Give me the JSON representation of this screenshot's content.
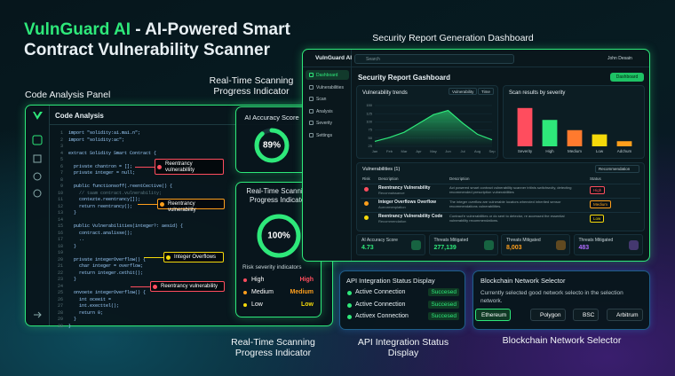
{
  "header": {
    "brand": "VulnGuard AI",
    "title": "- AI-Powered Smart Contract Vulnerability Scanner"
  },
  "captions": {
    "code_panel": "Code Analysis Panel",
    "progress_top": "Real-Time Scanning Progress Indicator",
    "dashboard": "Security Report Generation Dashboard",
    "progress_bottom": "Real-Time Scanning Progress Indicator",
    "api": "API Integration Status Display",
    "network": "Blockchain Network Selector"
  },
  "code_panel": {
    "title": "Code Analysis",
    "lines": [
      {
        "n": 1,
        "code": "import \"solidity:ai.mai.n\";"
      },
      {
        "n": 2,
        "code": "import \"solidity:ac\";"
      },
      {
        "n": 3
      },
      {
        "n": 4,
        "code": "extract Solidity Smart Contract {"
      },
      {
        "n": 5
      },
      {
        "n": 6,
        "code": "  private chantron = [];"
      },
      {
        "n": 7,
        "code": "  private integer = null;"
      },
      {
        "n": 8
      },
      {
        "n": 9,
        "code": "  public functionsoff(.reentCective() {"
      },
      {
        "n": 10,
        "code": "    // taam contract.vulnerability;"
      },
      {
        "n": 11,
        "code": "    contezte.reentrancy[]);"
      },
      {
        "n": 12,
        "code": "    return reentrancy();"
      },
      {
        "n": 13,
        "code": "  }"
      },
      {
        "n": 14
      },
      {
        "n": 15,
        "code": "  public Vulnerabilities(integer?: aesid) {"
      },
      {
        "n": 16,
        "code": "    contract.analisse();"
      },
      {
        "n": 17,
        "code": "    .."
      },
      {
        "n": 18,
        "code": "  }"
      },
      {
        "n": 19
      },
      {
        "n": 20,
        "code": "  private integerOverflow() {"
      },
      {
        "n": 21,
        "code": "    char integer = overflow;"
      },
      {
        "n": 22,
        "code": "    return integer.cethit();"
      },
      {
        "n": 23,
        "code": "  }"
      },
      {
        "n": 24
      },
      {
        "n": 25,
        "code": "  onvoete integerOverflow() {"
      },
      {
        "n": 26,
        "code": "    int oceeit ="
      },
      {
        "n": 27,
        "code": "    int.execttel();"
      },
      {
        "n": 28,
        "code": "    return 0;"
      },
      {
        "n": 29,
        "code": "  }"
      },
      {
        "n": 30,
        "code": "}"
      }
    ],
    "callouts": [
      {
        "text": "Reentrancy vulnerabillity",
        "color": "#ff4d5e"
      },
      {
        "text": "Reentrancy vulnerability",
        "color": "#ff9f1c"
      },
      {
        "text": "Integer Overflows",
        "color": "#f5d90a"
      },
      {
        "text": "Reentrancy vulnerability",
        "color": "#ff4d5e"
      }
    ]
  },
  "accuracy": {
    "title": "AI Accuracy Score",
    "value": 89,
    "value_label": "89%"
  },
  "scan": {
    "title": "Real-Time Scanning Progress Indicator",
    "value": 100,
    "value_label": "100%",
    "legend_title": "Risk severity indicators",
    "rows": [
      {
        "label": "High",
        "status": "High",
        "color": "#ff4d5e"
      },
      {
        "label": "Medium",
        "status": "Medium",
        "color": "#ff9f1c"
      },
      {
        "label": "Low",
        "status": "Low",
        "color": "#f5d90a"
      }
    ]
  },
  "dashboard": {
    "brand": "VulnGuard AI",
    "search": "Search",
    "user": "John Desain",
    "nav": [
      "Dashboard",
      "Vulnerabilities",
      "Scan",
      "Analysis",
      "Severity",
      "Settings"
    ],
    "title": "Security Report Gashboard",
    "button": "Dashboard",
    "trend": {
      "title": "Vulnerability trends",
      "filters": [
        "Vulnerability",
        "Time"
      ],
      "categories": [
        "Jan",
        "Feb",
        "Mar",
        "Apr",
        "May",
        "Jun",
        "Jul",
        "Aug",
        "Sep"
      ],
      "values": [
        40,
        52,
        68,
        95,
        122,
        135,
        96,
        62,
        45
      ],
      "ylim": [
        25,
        150
      ],
      "yticks": [
        25,
        50,
        75,
        100,
        125,
        150
      ],
      "color": "#2ee87a"
    },
    "severity": {
      "title": "Scan results by severity",
      "categories": [
        "Severity",
        "High",
        "Medium",
        "Low",
        "Adchum"
      ],
      "values": [
        45,
        31,
        19,
        14,
        6
      ],
      "colors": [
        "#ff4d5e",
        "#2ee87a",
        "#ff7a2e",
        "#f5d90a",
        "#ff9f1c"
      ],
      "ylim": [
        0,
        50
      ]
    },
    "vulnerabilities": {
      "title": "Vulnerabilities (1)",
      "filter": "Recommendation",
      "columns": [
        "Risk",
        "Description",
        "Description",
        "Status"
      ],
      "rows": [
        {
          "name": "Reentrancy Vulnerability",
          "sub": "Reconnaissance",
          "description": "Act powered smart contract vulnerability scanner tritinis switchsrcity, detecting recommended prescription vulnerabilities",
          "status": "High",
          "color": "#ff4d5e"
        },
        {
          "name": "Integer Overflows Overflow",
          "sub": "Aurrormenplation",
          "description": "The integer overflow are vulnerable locators wheezied inherited sensor recommendations vulnerabilities.",
          "status": "Medium",
          "color": "#ff9f1c"
        },
        {
          "name": "Reentrancy Vulnerability Code",
          "sub": "Recommendation",
          "description": "Contract'e vulnerabilities or do sent to detector, re accessed the essential vulnerability recommendations.",
          "status": "Low",
          "color": "#f5d90a"
        }
      ]
    },
    "stats": [
      {
        "label": "AI Accuracy Score",
        "value": "4.73",
        "color": "#2ee87a"
      },
      {
        "label": "Threats Mitigated",
        "value": "277,139",
        "color": "#2ee87a"
      },
      {
        "label": "Threats Mitigated",
        "value": "8,003",
        "color": "#ff9f1c"
      },
      {
        "label": "Threats Mitigated",
        "value": "483",
        "color": "#b06cff"
      }
    ]
  },
  "api": {
    "title": "API Integration Status Display",
    "rows": [
      {
        "label": "Active Connection",
        "status": "Succesed"
      },
      {
        "label": "Active Connection",
        "status": "Succesed"
      },
      {
        "label": "Activex Connection",
        "status": "Succesed"
      }
    ]
  },
  "network": {
    "title": "Blockchain Network Selector",
    "description": "Currently selected good network selecto in the selection network.",
    "chips": [
      "Ethereum",
      "Polygon",
      "BSC",
      "Arbitrum"
    ]
  }
}
